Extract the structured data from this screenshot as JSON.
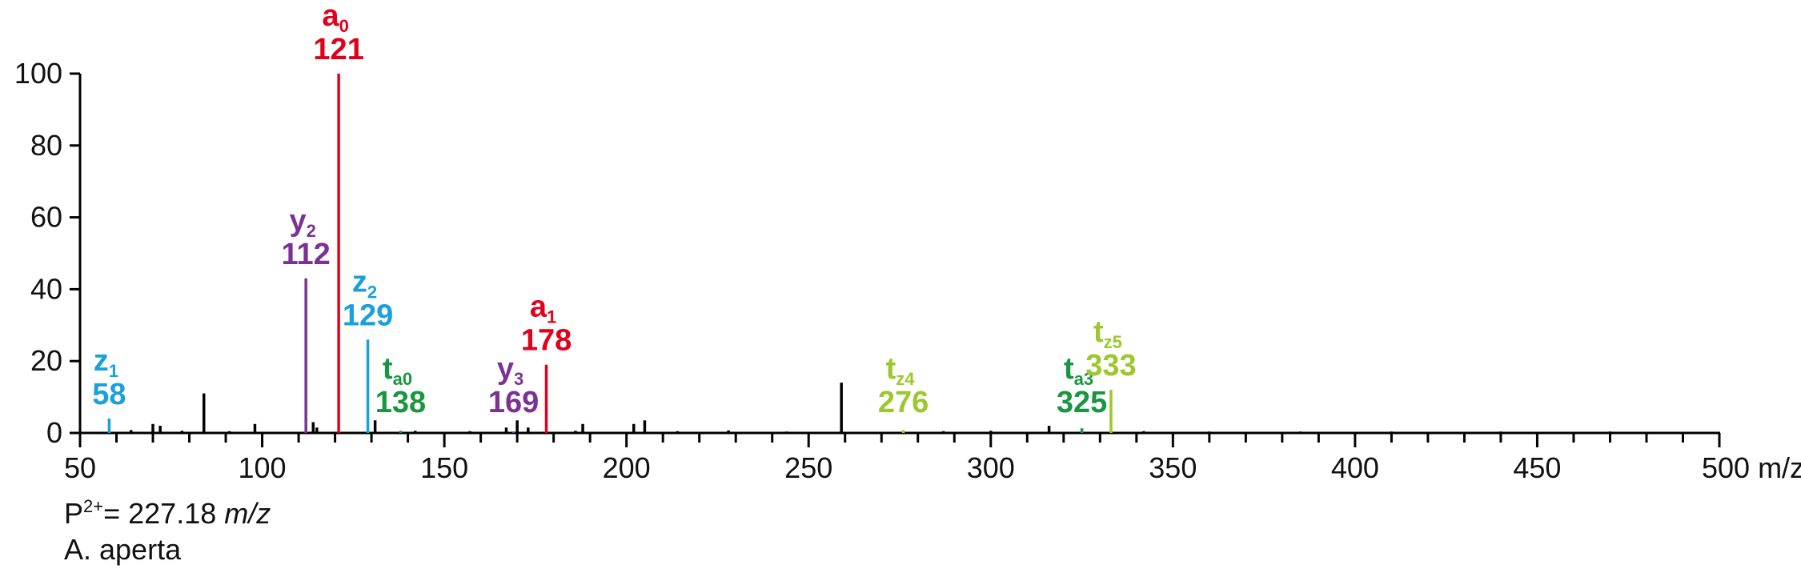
{
  "chart_data": {
    "type": "bar",
    "x_unit": "m/z",
    "xlim": [
      50,
      500
    ],
    "ylim": [
      0,
      100
    ],
    "x_ticks": [
      50,
      100,
      150,
      200,
      250,
      300,
      350,
      400,
      450,
      500
    ],
    "x_tick_labels": [
      "50",
      "100",
      "150",
      "200",
      "250",
      "300",
      "350",
      "400",
      "450",
      "500 m/z"
    ],
    "y_ticks": [
      0,
      20,
      40,
      60,
      80,
      100
    ],
    "y_tick_labels": [
      "0",
      "20",
      "40",
      "60",
      "80",
      "100"
    ],
    "colors": {
      "a": "#e2001a",
      "y": "#7b3294",
      "z": "#1aa0dc",
      "ta": "#1a9641",
      "tz": "#9dc72e",
      "unassigned": "#000000"
    },
    "annotated_peaks": [
      {
        "ion": "a",
        "sub": "0",
        "mz_label": "121",
        "mz": 121,
        "intensity": 100,
        "color_key": "a"
      },
      {
        "ion": "y",
        "sub": "2",
        "mz_label": "112",
        "mz": 112,
        "intensity": 43,
        "color_key": "y"
      },
      {
        "ion": "z",
        "sub": "2",
        "mz_label": "129",
        "mz": 129,
        "intensity": 26,
        "color_key": "z"
      },
      {
        "ion": "a",
        "sub": "1",
        "mz_label": "178",
        "mz": 178,
        "intensity": 19,
        "color_key": "a"
      },
      {
        "ion": "z",
        "sub": "1",
        "mz_label": "58",
        "mz": 58,
        "intensity": 4,
        "color_key": "z"
      },
      {
        "ion": "t",
        "sub": "a0",
        "mz_label": "138",
        "mz": 138,
        "intensity": 0.6,
        "color_key": "ta"
      },
      {
        "ion": "y",
        "sub": "3",
        "mz_label": "169",
        "mz": 169,
        "intensity": 0.4,
        "color_key": "y"
      },
      {
        "ion": "t",
        "sub": "z4",
        "mz_label": "276",
        "mz": 276,
        "intensity": 0.8,
        "color_key": "tz"
      },
      {
        "ion": "t",
        "sub": "a3",
        "mz_label": "325",
        "mz": 325,
        "intensity": 1.3,
        "color_key": "ta"
      },
      {
        "ion": "t",
        "sub": "z5",
        "mz_label": "333",
        "mz": 333,
        "intensity": 12,
        "color_key": "tz"
      }
    ],
    "unassigned_peaks": [
      {
        "mz": 70,
        "intensity": 2.5
      },
      {
        "mz": 72,
        "intensity": 2
      },
      {
        "mz": 84,
        "intensity": 11
      },
      {
        "mz": 98,
        "intensity": 2.5
      },
      {
        "mz": 114,
        "intensity": 3
      },
      {
        "mz": 115,
        "intensity": 1.5
      },
      {
        "mz": 131,
        "intensity": 3.5
      },
      {
        "mz": 167,
        "intensity": 1.5
      },
      {
        "mz": 170,
        "intensity": 3.5
      },
      {
        "mz": 173,
        "intensity": 1.5
      },
      {
        "mz": 188,
        "intensity": 2.5
      },
      {
        "mz": 202,
        "intensity": 2.5
      },
      {
        "mz": 205,
        "intensity": 3.5
      },
      {
        "mz": 259,
        "intensity": 14
      },
      {
        "mz": 316,
        "intensity": 2
      },
      {
        "mz": 64,
        "intensity": 0.8
      },
      {
        "mz": 78,
        "intensity": 0.6
      },
      {
        "mz": 91,
        "intensity": 0.5
      },
      {
        "mz": 142,
        "intensity": 0.6
      },
      {
        "mz": 157,
        "intensity": 0.5
      },
      {
        "mz": 186,
        "intensity": 0.6
      },
      {
        "mz": 214,
        "intensity": 0.5
      },
      {
        "mz": 228,
        "intensity": 0.7
      },
      {
        "mz": 244,
        "intensity": 0.4
      },
      {
        "mz": 287,
        "intensity": 0.5
      },
      {
        "mz": 300,
        "intensity": 0.6
      },
      {
        "mz": 342,
        "intensity": 0.5
      },
      {
        "mz": 360,
        "intensity": 0.4
      },
      {
        "mz": 385,
        "intensity": 0.4
      },
      {
        "mz": 410,
        "intensity": 0.4
      },
      {
        "mz": 440,
        "intensity": 0.4
      },
      {
        "mz": 470,
        "intensity": 0.4
      },
      {
        "mz": 485,
        "intensity": 0.3
      }
    ]
  },
  "footer": {
    "precursor_prefix": "P",
    "precursor_charge": "2+",
    "precursor_value": "= 227.18 ",
    "precursor_unit": "m/z",
    "species": "A. aperta"
  }
}
